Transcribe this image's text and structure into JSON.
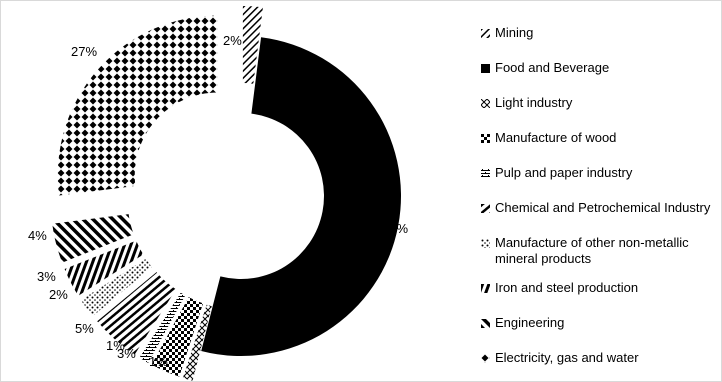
{
  "chart_data": {
    "type": "donut",
    "title": "",
    "slices": [
      {
        "name": "Mining",
        "value": 2,
        "label": "2%",
        "pattern": "diag-light",
        "exploded": true
      },
      {
        "name": "Food and Beverage",
        "value": 52,
        "label": "52%",
        "pattern": "solid",
        "exploded": false
      },
      {
        "name": "Light industry",
        "value": 1,
        "label": "1%",
        "pattern": "cross-x",
        "exploded": true
      },
      {
        "name": "Manufacture of wood",
        "value": 3,
        "label": "3%",
        "pattern": "checker",
        "exploded": true
      },
      {
        "name": "Pulp and paper industry",
        "value": 1,
        "label": "1%",
        "pattern": "weave",
        "exploded": true
      },
      {
        "name": "Chemical and Petrochemical Industry",
        "value": 5,
        "label": "5%",
        "pattern": "horizontal",
        "exploded": true
      },
      {
        "name": "Manufacture of other non-metallic mineral products",
        "value": 2,
        "label": "2%",
        "pattern": "dots",
        "exploded": true
      },
      {
        "name": "Iron and steel production",
        "value": 3,
        "label": "3%",
        "pattern": "vertical",
        "exploded": true
      },
      {
        "name": "Engineering",
        "value": 4,
        "label": "4%",
        "pattern": "diag-heavy",
        "exploded": true
      },
      {
        "name": "Electricity, gas and water",
        "value": 27,
        "label": "27%",
        "pattern": "diamonds",
        "exploded": true
      }
    ],
    "legend_position": "right",
    "colors": {
      "fill": "#000000",
      "background": "#ffffff",
      "border": "#d9d9d9"
    }
  }
}
